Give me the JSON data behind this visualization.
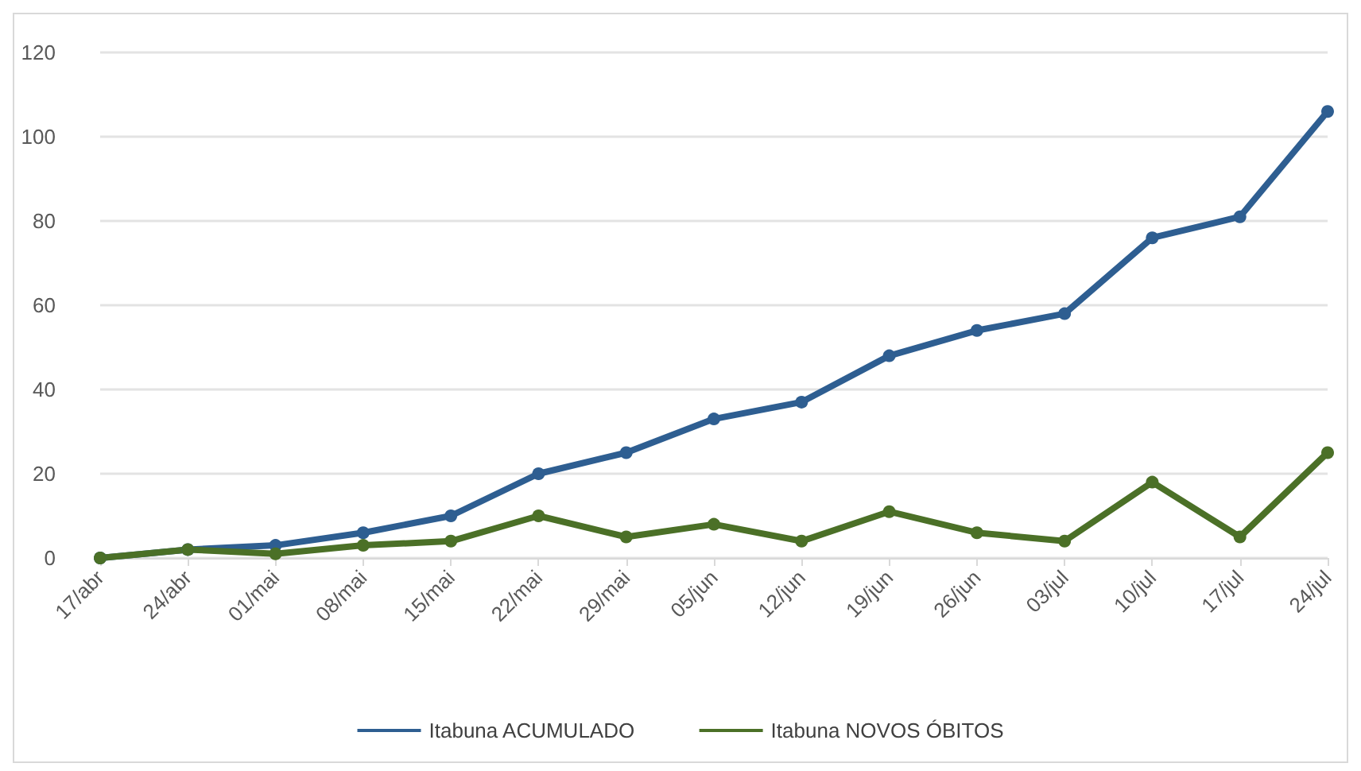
{
  "chart_data": {
    "type": "line",
    "categories": [
      "17/abr",
      "24/abr",
      "01/mai",
      "08/mai",
      "15/mai",
      "22/mai",
      "29/mai",
      "05/jun",
      "12/jun",
      "19/jun",
      "26/jun",
      "03/jul",
      "10/jul",
      "17/jul",
      "24/jul"
    ],
    "series": [
      {
        "name": "Itabuna ACUMULADO",
        "color": "#2e5e91",
        "values": [
          0,
          2,
          3,
          6,
          10,
          20,
          25,
          33,
          37,
          48,
          54,
          58,
          76,
          81,
          106
        ]
      },
      {
        "name": "Itabuna NOVOS ÓBITOS",
        "color": "#4b7027",
        "values": [
          0,
          2,
          1,
          3,
          4,
          10,
          5,
          8,
          4,
          11,
          6,
          4,
          18,
          5,
          25
        ]
      }
    ],
    "ylim": [
      0,
      120
    ],
    "yticks": [
      0,
      20,
      40,
      60,
      80,
      100,
      120
    ],
    "grid": "y",
    "legend": "bottom",
    "marker": "circle",
    "line_style": "solid"
  }
}
